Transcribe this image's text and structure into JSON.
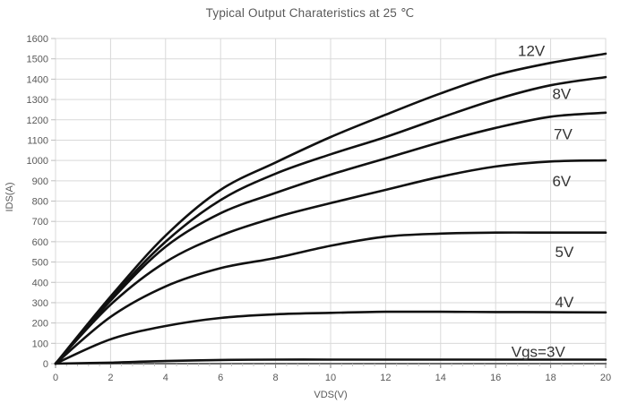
{
  "chart_data": {
    "type": "line",
    "title": "Typical Output Charateristics at 25 ℃",
    "xlabel": "VDS(V)",
    "ylabel": "IDS(A)",
    "xlim": [
      0,
      20
    ],
    "ylim": [
      0,
      1600
    ],
    "grid": true,
    "legend_position": "inline-curve-labels",
    "x_ticks": [
      0,
      2,
      4,
      6,
      8,
      10,
      12,
      14,
      16,
      18,
      20
    ],
    "y_ticks": [
      0,
      100,
      200,
      300,
      400,
      500,
      600,
      700,
      800,
      900,
      1000,
      1100,
      1200,
      1300,
      1400,
      1500,
      1600
    ],
    "x_minor_tick_step": 0.4,
    "x": [
      0,
      2,
      4,
      6,
      8,
      10,
      12,
      14,
      16,
      18,
      20
    ],
    "series": [
      {
        "name": "Vgs=12V",
        "label": "12V",
        "values": [
          0,
          330,
          630,
          855,
          990,
          1115,
          1225,
          1330,
          1420,
          1480,
          1525
        ],
        "label_x": 17.3,
        "label_y": 1540
      },
      {
        "name": "Vgs=8V",
        "label": "8V",
        "values": [
          0,
          320,
          600,
          805,
          935,
          1030,
          1115,
          1210,
          1300,
          1370,
          1410
        ],
        "label_x": 18.4,
        "label_y": 1330
      },
      {
        "name": "Vgs=7V",
        "label": "7V",
        "values": [
          0,
          310,
          575,
          740,
          840,
          930,
          1010,
          1090,
          1160,
          1215,
          1235
        ],
        "label_x": 18.45,
        "label_y": 1130
      },
      {
        "name": "Vgs=6V",
        "label": "6V",
        "values": [
          0,
          290,
          500,
          630,
          720,
          790,
          855,
          920,
          970,
          995,
          1000
        ],
        "label_x": 18.4,
        "label_y": 900
      },
      {
        "name": "Vgs=5V",
        "label": "5V",
        "values": [
          0,
          230,
          380,
          470,
          520,
          580,
          625,
          640,
          645,
          645,
          645
        ],
        "label_x": 18.5,
        "label_y": 550
      },
      {
        "name": "Vgs=4V",
        "label": "4V",
        "values": [
          0,
          120,
          185,
          225,
          243,
          250,
          255,
          255,
          254,
          253,
          252
        ],
        "label_x": 18.5,
        "label_y": 305
      },
      {
        "name": "Vgs=3V",
        "label": "Vgs=3V",
        "values": [
          0,
          5,
          13,
          18,
          20,
          20,
          20,
          20,
          20,
          20,
          20
        ],
        "label_x": 17.55,
        "label_y": 60
      }
    ]
  },
  "colors": {
    "background": "#ffffff",
    "title_text": "#595959",
    "axis_text": "#595959",
    "grid": "#d9d9d9",
    "plot_border": "#d9d9d9",
    "axis_line": "#595959",
    "major_tick": "#808080",
    "minor_tick": "#bfbfbf",
    "curve": "#111111",
    "curve_label": "#333333"
  }
}
